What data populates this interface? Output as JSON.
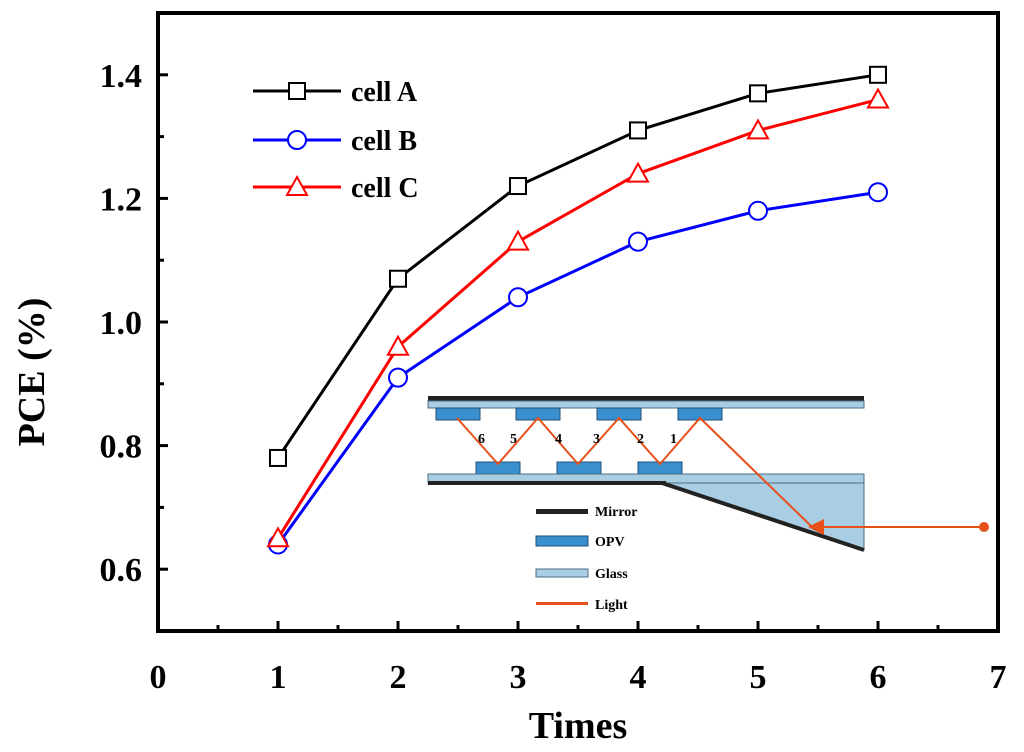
{
  "chart_data": {
    "type": "line",
    "xlabel": "Times",
    "ylabel": "PCE (%)",
    "xlim": [
      0,
      7
    ],
    "ylim": [
      0.5,
      1.5
    ],
    "xticks": [
      0,
      1,
      2,
      3,
      4,
      5,
      6,
      7
    ],
    "yticks": [
      0.6,
      0.8,
      1.0,
      1.2,
      1.4
    ],
    "xtick_labels": [
      "0",
      "1",
      "2",
      "3",
      "4",
      "5",
      "6",
      "7"
    ],
    "ytick_labels": [
      "0.6",
      "0.8",
      "1.0",
      "1.2",
      "1.4"
    ],
    "legend_position": "top-left",
    "series": [
      {
        "name": "cell A",
        "color": "#000000",
        "marker": "square",
        "x": [
          1,
          2,
          3,
          4,
          5,
          6
        ],
        "values": [
          0.78,
          1.07,
          1.22,
          1.31,
          1.37,
          1.4
        ]
      },
      {
        "name": "cell B",
        "color": "#0000ff",
        "marker": "circle",
        "x": [
          1,
          2,
          3,
          4,
          5,
          6
        ],
        "values": [
          0.64,
          0.91,
          1.04,
          1.13,
          1.18,
          1.21
        ]
      },
      {
        "name": "cell C",
        "color": "#ff0000",
        "marker": "triangle",
        "x": [
          1,
          2,
          3,
          4,
          5,
          6
        ],
        "values": [
          0.65,
          0.96,
          1.13,
          1.24,
          1.31,
          1.36
        ]
      }
    ]
  },
  "inset": {
    "bounce_numbers": [
      "6",
      "5",
      "4",
      "3",
      "2",
      "1"
    ],
    "legend": [
      {
        "label": "Mirror",
        "color": "#222222"
      },
      {
        "label": "OPV",
        "color": "#3a8fce"
      },
      {
        "label": "Glass",
        "color": "#a9cde3"
      },
      {
        "label": "Light",
        "color": "#e8501a"
      }
    ]
  }
}
